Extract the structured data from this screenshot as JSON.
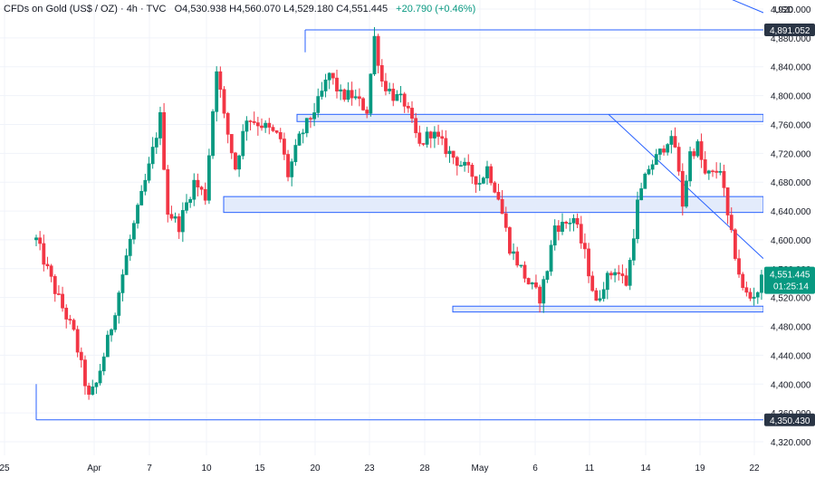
{
  "header": {
    "title": "CFDs on Gold (US$ / OZ) · 4h · TVC",
    "open_label": "O",
    "open": "4,530.938",
    "high_label": "H",
    "high": "4,560.070",
    "low_label": "L",
    "low": "4,529.180",
    "close_label": "C",
    "close": "4,551.445",
    "change": "+20.790 (+0.46%)"
  },
  "currency": "USD",
  "colors": {
    "up": "#089981",
    "down": "#f23645",
    "candle_body_up": "#ffffff",
    "candle_body_down": "#f23645",
    "line": "#2962ff",
    "zone_fill": "#e3ebfb",
    "badge_dark": "#2a3545",
    "badge_green": "#089981"
  },
  "chart_data": {
    "type": "candlestick",
    "title": "CFDs on Gold (US$ / OZ) · 4h · TVC",
    "x_tick_labels": [
      "25",
      "Apr",
      "7",
      "10",
      "15",
      "20",
      "23",
      "28",
      "May",
      "6",
      "11",
      "14",
      "19",
      "22"
    ],
    "y_tick_labels": [
      "4,920.000",
      "4,880.000",
      "4,840.000",
      "4,800.000",
      "4,760.000",
      "4,720.000",
      "4,680.000",
      "4,640.000",
      "4,600.000",
      "4,560.000",
      "4,520.000",
      "4,480.000",
      "4,440.000",
      "4,400.000",
      "4,360.000",
      "4,320.000"
    ],
    "ylim": [
      4300,
      4940
    ],
    "price_labels": {
      "high_level": "4,891.052",
      "current": "4,551.445",
      "countdown": "01:25:14",
      "low_level": "4,350.430"
    },
    "levels": [
      {
        "name": "high",
        "value": 4891.052
      },
      {
        "name": "low",
        "value": 4350.43
      }
    ],
    "zones": [
      {
        "top": 4774,
        "bottom": 4764
      },
      {
        "top": 4660,
        "bottom": 4638
      },
      {
        "top": 4508,
        "bottom": 4500
      }
    ],
    "trendline": [
      {
        "x": 12.3,
        "y": 4774
      },
      {
        "x": 21.2,
        "y": 4574
      }
    ],
    "upper_line": [
      {
        "x": 18.9,
        "y": 4955
      },
      {
        "x": 21.2,
        "y": 4930
      }
    ],
    "last_close": 4551.445,
    "waypoints": [
      [
        0,
        4600
      ],
      [
        0.5,
        4530
      ],
      [
        1.0,
        4470
      ],
      [
        1.4,
        4380
      ],
      [
        1.6,
        4400
      ],
      [
        2.0,
        4480
      ],
      [
        2.5,
        4600
      ],
      [
        3.0,
        4700
      ],
      [
        3.3,
        4770
      ],
      [
        3.5,
        4640
      ],
      [
        3.8,
        4620
      ],
      [
        4.2,
        4680
      ],
      [
        4.5,
        4660
      ],
      [
        4.8,
        4840
      ],
      [
        5.0,
        4770
      ],
      [
        5.3,
        4700
      ],
      [
        5.6,
        4770
      ],
      [
        6.0,
        4760
      ],
      [
        6.5,
        4740
      ],
      [
        6.7,
        4690
      ],
      [
        7.0,
        4740
      ],
      [
        7.5,
        4790
      ],
      [
        7.8,
        4830
      ],
      [
        8.1,
        4800
      ],
      [
        8.4,
        4800
      ],
      [
        8.8,
        4780
      ],
      [
        9.0,
        4880
      ],
      [
        9.2,
        4820
      ],
      [
        9.5,
        4800
      ],
      [
        9.8,
        4790
      ],
      [
        10.2,
        4730
      ],
      [
        10.5,
        4750
      ],
      [
        11.0,
        4720
      ],
      [
        11.4,
        4700
      ],
      [
        11.8,
        4680
      ],
      [
        12.0,
        4700
      ],
      [
        12.3,
        4660
      ],
      [
        12.6,
        4590
      ],
      [
        12.9,
        4560
      ],
      [
        13.1,
        4540
      ],
      [
        13.4,
        4520
      ],
      [
        13.6,
        4560
      ],
      [
        13.8,
        4620
      ],
      [
        14.0,
        4620
      ],
      [
        14.3,
        4630
      ],
      [
        14.6,
        4580
      ],
      [
        14.9,
        4510
      ],
      [
        15.1,
        4540
      ],
      [
        15.4,
        4560
      ],
      [
        15.7,
        4540
      ],
      [
        15.8,
        4570
      ],
      [
        16.0,
        4650
      ],
      [
        16.3,
        4700
      ],
      [
        16.6,
        4720
      ],
      [
        16.8,
        4740
      ],
      [
        17.0,
        4730
      ],
      [
        17.2,
        4650
      ],
      [
        17.4,
        4720
      ],
      [
        17.6,
        4730
      ],
      [
        17.8,
        4690
      ],
      [
        18.0,
        4690
      ],
      [
        18.2,
        4700
      ],
      [
        18.4,
        4630
      ],
      [
        18.6,
        4580
      ],
      [
        18.8,
        4530
      ],
      [
        19.0,
        4520
      ],
      [
        19.2,
        4530
      ],
      [
        19.35,
        4551.445
      ]
    ]
  }
}
